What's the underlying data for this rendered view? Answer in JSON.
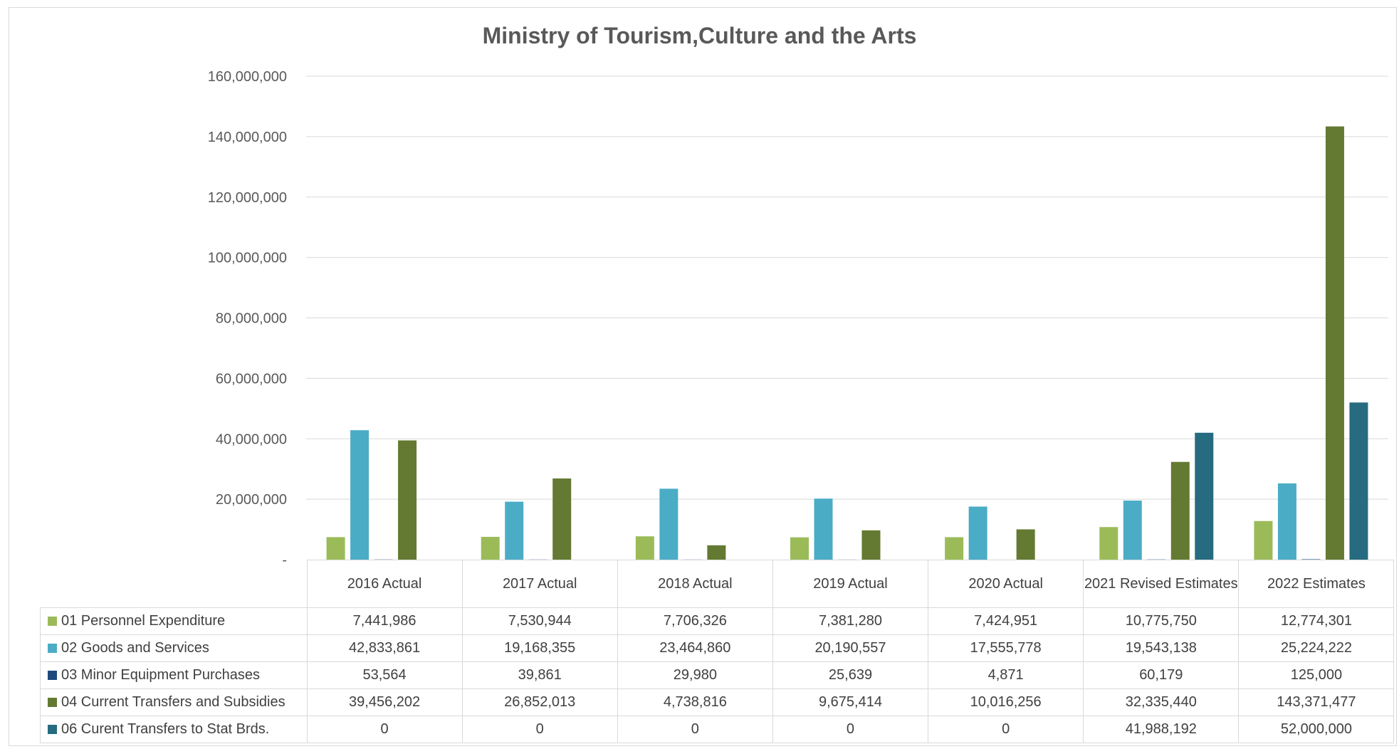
{
  "chart_data": {
    "type": "bar",
    "title": "Ministry of Tourism,Culture and the Arts",
    "categories": [
      "2016 Actual",
      "2017 Actual",
      "2018 Actual",
      "2019 Actual",
      "2020 Actual",
      "2021  Revised Estimates",
      "2022 Estimates"
    ],
    "ylim": [
      0,
      160000000
    ],
    "yticks": [
      0,
      20000000,
      40000000,
      60000000,
      80000000,
      100000000,
      120000000,
      140000000,
      160000000
    ],
    "ytick_labels": [
      "-",
      "20,000,000",
      "40,000,000",
      "60,000,000",
      "80,000,000",
      "100,000,000",
      "120,000,000",
      "140,000,000",
      "160,000,000"
    ],
    "grid": true,
    "legend": "data-table",
    "series": [
      {
        "name": "01 Personnel Expenditure",
        "color": "#9bbb59",
        "values": [
          7441986,
          7530944,
          7706326,
          7381280,
          7424951,
          10775750,
          12774301
        ],
        "labels": [
          "7,441,986",
          "7,530,944",
          "7,706,326",
          "7,381,280",
          "7,424,951",
          "10,775,750",
          "12,774,301"
        ]
      },
      {
        "name": "02 Goods and Services",
        "color": "#4bacc6",
        "values": [
          42833861,
          19168355,
          23464860,
          20190557,
          17555778,
          19543138,
          25224222
        ],
        "labels": [
          "42,833,861",
          "19,168,355",
          "23,464,860",
          "20,190,557",
          "17,555,778",
          "19,543,138",
          "25,224,222"
        ]
      },
      {
        "name": "03 Minor Equipment Purchases",
        "color": "#1f497d",
        "values": [
          53564,
          39861,
          29980,
          25639,
          4871,
          60179,
          125000
        ],
        "labels": [
          "53,564",
          "39,861",
          "29,980",
          "25,639",
          "4,871",
          "60,179",
          "125,000"
        ]
      },
      {
        "name": "04 Current Transfers and Subsidies",
        "color": "#647a32",
        "values": [
          39456202,
          26852013,
          4738816,
          9675414,
          10016256,
          32335440,
          143371477
        ],
        "labels": [
          "39,456,202",
          "26,852,013",
          "4,738,816",
          "9,675,414",
          "10,016,256",
          "32,335,440",
          "143,371,477"
        ]
      },
      {
        "name": "06 Curent Transfers to Stat Brds.",
        "color": "#266b80",
        "values": [
          0,
          0,
          0,
          0,
          0,
          41988192,
          52000000
        ],
        "labels": [
          "0",
          "0",
          "0",
          "0",
          "0",
          "41,988,192",
          "52,000,000"
        ]
      }
    ]
  }
}
